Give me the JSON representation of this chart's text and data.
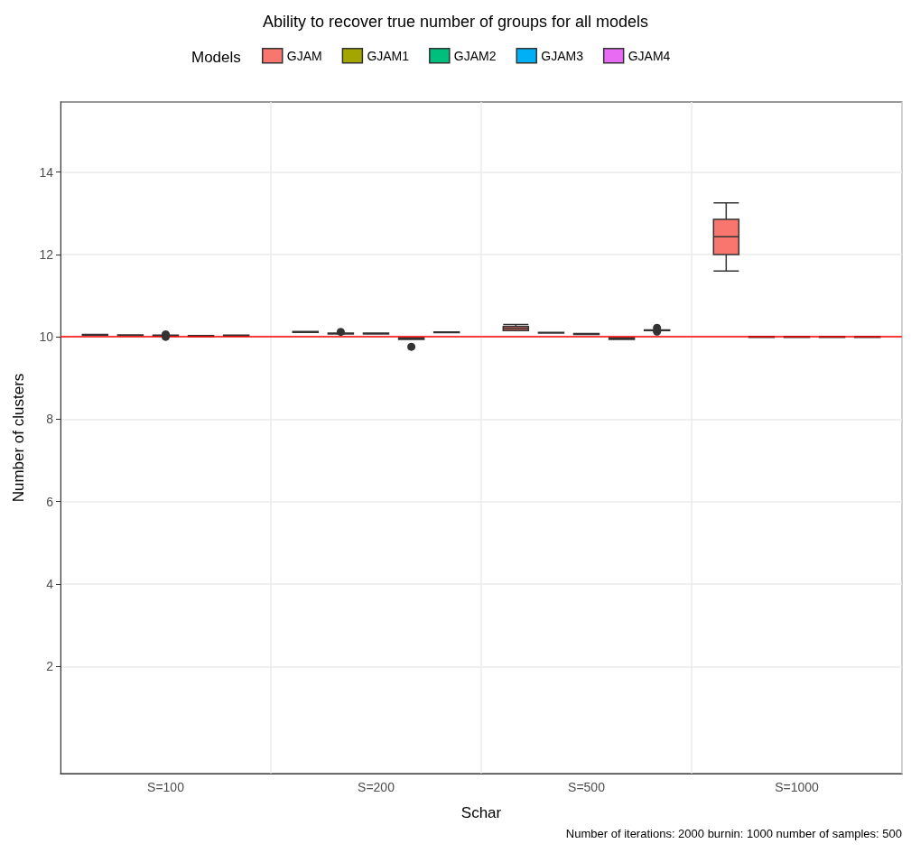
{
  "chart_data": {
    "type": "box",
    "title": "Ability to recover true number of groups for all models",
    "xlabel": "Schar",
    "ylabel": "Number of clusters",
    "legend_title": "Models",
    "categories": [
      "S=100",
      "S=200",
      "S=500",
      "S=1000"
    ],
    "series": [
      {
        "name": "GJAM",
        "color": "#f8766d",
        "boxes": [
          {
            "low": 10.04,
            "q1": 10.04,
            "median": 10.05,
            "q3": 10.06,
            "high": 10.06
          },
          {
            "low": 10.11,
            "q1": 10.11,
            "median": 10.12,
            "q3": 10.13,
            "high": 10.13
          },
          {
            "low": 10.15,
            "q1": 10.15,
            "median": 10.2,
            "q3": 10.25,
            "high": 10.3
          },
          {
            "low": 11.6,
            "q1": 12.0,
            "median": 12.43,
            "q3": 12.85,
            "high": 13.25
          }
        ]
      },
      {
        "name": "GJAM1",
        "color": "#a3a500",
        "boxes": [
          {
            "low": 10.03,
            "q1": 10.03,
            "median": 10.04,
            "q3": 10.05,
            "high": 10.05
          },
          {
            "low": 10.07,
            "q1": 10.07,
            "median": 10.08,
            "q3": 10.09,
            "high": 10.09,
            "outliers": [
              10.12
            ]
          },
          {
            "low": 10.09,
            "q1": 10.09,
            "median": 10.1,
            "q3": 10.11,
            "high": 10.11
          },
          {
            "low": 9.99,
            "q1": 9.99,
            "median": 10.0,
            "q3": 10.01,
            "high": 10.01
          }
        ]
      },
      {
        "name": "GJAM2",
        "color": "#00bf7d",
        "boxes": [
          {
            "low": 10.02,
            "q1": 10.02,
            "median": 10.03,
            "q3": 10.04,
            "high": 10.04,
            "outliers": [
              10.06,
              10.0
            ]
          },
          {
            "low": 10.07,
            "q1": 10.07,
            "median": 10.08,
            "q3": 10.09,
            "high": 10.09
          },
          {
            "low": 10.06,
            "q1": 10.06,
            "median": 10.07,
            "q3": 10.08,
            "high": 10.08
          },
          {
            "low": 9.99,
            "q1": 9.99,
            "median": 10.0,
            "q3": 10.01,
            "high": 10.01
          }
        ]
      },
      {
        "name": "GJAM3",
        "color": "#00b0f6",
        "boxes": [
          {
            "low": 10.01,
            "q1": 10.01,
            "median": 10.02,
            "q3": 10.03,
            "high": 10.03
          },
          {
            "low": 9.94,
            "q1": 9.94,
            "median": 9.96,
            "q3": 9.98,
            "high": 9.98,
            "outliers": [
              9.76
            ]
          },
          {
            "low": 9.94,
            "q1": 9.94,
            "median": 9.96,
            "q3": 9.98,
            "high": 9.98
          },
          {
            "low": 9.99,
            "q1": 9.99,
            "median": 10.0,
            "q3": 10.01,
            "high": 10.01
          }
        ]
      },
      {
        "name": "GJAM4",
        "color": "#e76bf3",
        "boxes": [
          {
            "low": 10.02,
            "q1": 10.02,
            "median": 10.03,
            "q3": 10.04,
            "high": 10.04
          },
          {
            "low": 10.1,
            "q1": 10.1,
            "median": 10.11,
            "q3": 10.12,
            "high": 10.12
          },
          {
            "low": 10.15,
            "q1": 10.15,
            "median": 10.16,
            "q3": 10.17,
            "high": 10.17,
            "outliers": [
              10.22,
              10.13
            ]
          },
          {
            "low": 9.99,
            "q1": 9.99,
            "median": 10.0,
            "q3": 10.01,
            "high": 10.01
          }
        ]
      }
    ],
    "ylim": [
      -0.6,
      15.7
    ],
    "yticks": [
      2,
      4,
      6,
      8,
      10,
      12,
      14
    ],
    "grid": true,
    "legend": "top",
    "ref_lines": [
      {
        "axis": "y",
        "value": 10,
        "color": "#ff0000"
      }
    ],
    "annotations": [
      "Number of iterations: 2000 burnin: 1000 number of samples: 500"
    ]
  }
}
